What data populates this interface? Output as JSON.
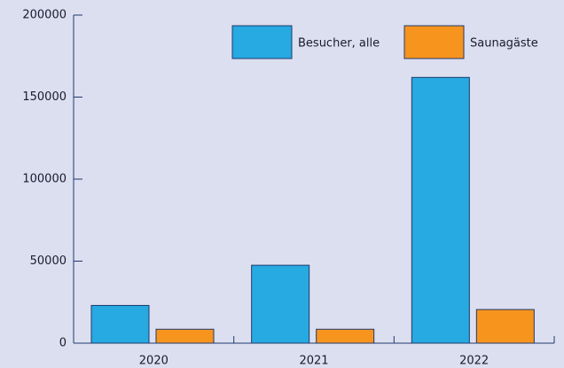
{
  "chart_data": {
    "type": "bar",
    "categories": [
      "2020",
      "2021",
      "2022"
    ],
    "series": [
      {
        "name": "Besucher, alle",
        "color": "#27a9e1",
        "values": [
          23000,
          47500,
          162000
        ]
      },
      {
        "name": "Saunagäste",
        "color": "#f7941d",
        "values": [
          8500,
          8500,
          20500
        ]
      }
    ],
    "ylim": [
      0,
      200000
    ],
    "yticks": [
      0,
      50000,
      100000,
      150000,
      200000
    ],
    "legend": "top-right"
  }
}
